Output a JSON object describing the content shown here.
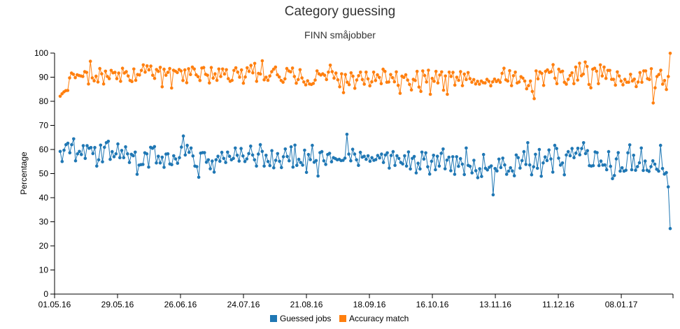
{
  "chart_data": {
    "type": "line",
    "title": "Category guessing",
    "subtitle": "FINN småjobber",
    "xlabel": "",
    "ylabel": "Percentage",
    "ylim": [
      0,
      100
    ],
    "yticks": [
      0,
      10,
      20,
      30,
      40,
      50,
      60,
      70,
      80,
      90,
      100
    ],
    "xticks": [
      "01.05.16",
      "29.05.16",
      "26.06.16",
      "24.07.16",
      "21.08.16",
      "18.09.16",
      "16.10.16",
      "13.11.16",
      "11.12.16",
      "08.01.17"
    ],
    "x_start": "01.05.16",
    "x_end": "31.01.17",
    "grid": false,
    "legend_position": "bottom",
    "series": [
      {
        "name": "Guessed jobs",
        "color": "#1f77b4",
        "values": [
          59.2,
          55.0,
          59.7,
          62.0,
          62.6,
          58.6,
          62.0,
          64.4,
          55.3,
          58.2,
          59.2,
          57.9,
          61.6,
          56.3,
          61.6,
          60.5,
          60.8,
          58.3,
          60.8,
          53.1,
          55.7,
          61.8,
          54.9,
          60.9,
          62.8,
          63.4,
          55.9,
          59.1,
          57.0,
          58.2,
          62.3,
          56.6,
          59.6,
          56.6,
          61.1,
          58.2,
          54.6,
          58.0,
          57.4,
          58.9,
          49.7,
          53.5,
          53.7,
          53.8,
          58.6,
          58.2,
          52.7,
          60.9,
          60.5,
          61.2,
          54.4,
          57.2,
          54.4,
          56.8,
          52.6,
          58.1,
          58.2,
          54.0,
          53.7,
          57.4,
          56.1,
          54.3,
          56.6,
          61.0,
          65.6,
          57.7,
          61.7,
          58.8,
          60.6,
          57.3,
          53.1,
          52.9,
          48.5,
          58.5,
          58.7,
          58.7,
          54.7,
          55.7,
          52.0,
          55.2,
          50.6,
          55.7,
          57.2,
          55.1,
          58.8,
          56.3,
          54.6,
          58.9,
          57.2,
          55.7,
          56.3,
          60.6,
          57.6,
          55.2,
          60.4,
          57.3,
          55.0,
          56.1,
          58.3,
          61.4,
          57.7,
          55.7,
          53.1,
          58.1,
          62.0,
          59.2,
          53.1,
          57.6,
          55.0,
          53.3,
          59.5,
          52.4,
          55.5,
          58.3,
          55.1,
          52.5,
          57.0,
          60.2,
          57.1,
          55.3,
          61.1,
          52.7,
          61.8,
          53.4,
          55.9,
          54.6,
          53.5,
          59.7,
          50.5,
          57.9,
          55.8,
          61.7,
          54.7,
          55.4,
          49.0,
          58.7,
          59.1,
          55.3,
          53.8,
          57.9,
          58.4,
          54.9,
          56.6,
          56.2,
          55.7,
          55.9,
          55.4,
          55.5,
          56.4,
          66.3,
          58.1,
          55.3,
          60.1,
          58.1,
          55.7,
          53.4,
          58.8,
          56.8,
          57.2,
          55.9,
          57.4,
          55.1,
          56.6,
          55.5,
          55.8,
          57.5,
          56.5,
          58.1,
          54.6,
          57.7,
          58.6,
          52.3,
          57.5,
          59.1,
          53.4,
          57.4,
          56.3,
          54.6,
          54.0,
          57.4,
          53.1,
          59.0,
          51.9,
          56.3,
          57.1,
          50.3,
          54.3,
          51.9,
          58.9,
          56.0,
          58.6,
          52.8,
          49.8,
          55.1,
          57.6,
          51.6,
          57.2,
          53.1,
          58.4,
          60.2,
          52.0,
          55.6,
          56.8,
          51.2,
          57.0,
          49.7,
          57.0,
          53.0,
          56.2,
          53.9,
          49.6,
          60.6,
          53.4,
          53.0,
          50.3,
          55.5,
          51.2,
          48.3,
          52.0,
          48.8,
          57.9,
          52.2,
          51.5,
          52.6,
          53.2,
          41.2,
          52.1,
          51.1,
          56.0,
          52.5,
          56.4,
          53.6,
          49.7,
          51.0,
          52.4,
          51.1,
          49.1,
          57.7,
          56.6,
          52.3,
          55.4,
          59.1,
          53.8,
          62.8,
          53.6,
          49.5,
          52.8,
          58.0,
          52.2,
          60.0,
          48.9,
          54.4,
          56.9,
          55.4,
          59.8,
          56.1,
          50.6,
          61.7,
          60.4,
          56.4,
          53.5,
          54.4,
          49.5,
          57.7,
          59.1,
          57.4,
          60.4,
          56.6,
          58.5,
          60.5,
          57.8,
          60.4,
          62.8,
          58.3,
          59.5,
          53.3,
          53.1,
          53.3,
          59.0,
          58.7,
          53.3,
          55.2,
          53.5,
          53.6,
          51.6,
          59.1,
          53.0,
          47.9,
          49.2,
          56.1,
          58.7,
          51.0,
          52.4,
          51.0,
          51.4,
          58.6,
          61.9,
          51.6,
          57.6,
          51.4,
          52.9,
          54.5,
          60.6,
          51.3,
          55.2,
          51.4,
          50.9,
          52.9,
          55.3,
          53.9,
          51.8,
          51.0,
          61.7,
          52.1,
          49.8,
          50.4,
          44.5,
          27.2
        ]
      },
      {
        "name": "Accuracy match",
        "color": "#ff7f0e",
        "values": [
          82.1,
          83.1,
          83.9,
          84.4,
          84.5,
          89.7,
          91.7,
          91.2,
          89.8,
          91.0,
          90.7,
          90.5,
          90.3,
          92.3,
          92.0,
          87.2,
          96.6,
          89.7,
          88.5,
          90.4,
          88.0,
          93.6,
          91.4,
          87.2,
          92.5,
          90.3,
          89.4,
          92.8,
          91.8,
          92.0,
          89.4,
          91.7,
          88.3,
          93.7,
          91.7,
          92.3,
          90.5,
          88.6,
          88.2,
          93.4,
          88.7,
          91.1,
          90.9,
          92.8,
          95.1,
          92.1,
          94.7,
          93.0,
          94.6,
          90.8,
          89.5,
          93.2,
          92.4,
          94.1,
          86.0,
          93.3,
          90.8,
          92.0,
          93.6,
          85.5,
          92.9,
          92.5,
          91.9,
          93.2,
          92.6,
          88.6,
          93.0,
          87.7,
          93.5,
          91.1,
          94.2,
          93.4,
          91.0,
          90.2,
          88.6,
          93.8,
          94.0,
          91.2,
          90.8,
          87.6,
          94.0,
          89.6,
          91.4,
          88.7,
          93.4,
          90.3,
          93.4,
          91.3,
          93.1,
          89.4,
          88.3,
          88.7,
          92.8,
          93.9,
          92.1,
          90.0,
          93.0,
          87.5,
          90.1,
          93.9,
          92.4,
          94.9,
          91.8,
          95.7,
          88.3,
          91.6,
          91.3,
          96.8,
          88.9,
          90.0,
          88.7,
          90.5,
          92.3,
          93.3,
          94.2,
          91.0,
          90.1,
          88.6,
          87.9,
          89.3,
          93.6,
          92.6,
          92.2,
          93.8,
          90.3,
          87.5,
          89.0,
          93.1,
          89.7,
          88.0,
          86.8,
          88.5,
          87.2,
          87.0,
          87.4,
          88.8,
          92.6,
          91.4,
          90.9,
          91.4,
          90.8,
          89.0,
          92.1,
          95.0,
          92.3,
          89.6,
          91.7,
          88.9,
          86.0,
          91.4,
          83.6,
          91.1,
          87.9,
          86.9,
          91.8,
          90.4,
          85.4,
          88.8,
          90.6,
          92.1,
          89.0,
          87.1,
          92.1,
          89.3,
          86.4,
          88.1,
          92.1,
          88.6,
          91.0,
          89.9,
          87.3,
          93.3,
          92.4,
          87.9,
          88.0,
          91.1,
          89.8,
          88.1,
          92.2,
          86.6,
          83.3,
          90.4,
          89.9,
          91.0,
          88.8,
          87.0,
          84.7,
          89.1,
          88.6,
          92.4,
          85.9,
          84.1,
          92.6,
          90.7,
          88.0,
          92.9,
          82.9,
          89.5,
          88.3,
          92.4,
          87.6,
          90.9,
          92.2,
          84.6,
          90.5,
          82.9,
          92.1,
          90.3,
          92.0,
          86.7,
          90.0,
          88.7,
          92.3,
          86.5,
          91.3,
          89.0,
          91.9,
          89.4,
          87.9,
          89.0,
          87.2,
          88.3,
          87.1,
          88.4,
          87.7,
          87.6,
          89.1,
          88.3,
          86.4,
          88.1,
          89.2,
          88.2,
          88.8,
          87.9,
          91.6,
          93.7,
          88.9,
          88.4,
          92.7,
          86.5,
          90.6,
          92.1,
          87.6,
          88.0,
          90.2,
          89.6,
          88.4,
          85.2,
          86.5,
          88.4,
          84.1,
          81.1,
          92.6,
          89.3,
          92.2,
          91.6,
          86.6,
          92.4,
          93.0,
          92.0,
          92.3,
          95.2,
          89.6,
          87.3,
          93.3,
          92.2,
          92.5,
          87.9,
          87.1,
          89.1,
          90.7,
          91.8,
          87.3,
          94.2,
          88.8,
          95.8,
          90.6,
          91.3,
          96.3,
          94.4,
          87.0,
          85.6,
          93.3,
          93.7,
          92.5,
          87.3,
          95.1,
          90.5,
          94.2,
          89.5,
          92.8,
          92.8,
          89.1,
          89.1,
          86.7,
          92.2,
          90.5,
          88.4,
          86.8,
          89.1,
          87.9,
          87.9,
          91.2,
          88.4,
          89.2,
          86.1,
          88.0,
          91.9,
          87.9,
          92.6,
          92.6,
          89.4,
          89.0,
          93.5,
          79.3,
          85.6,
          90.3,
          91.1,
          92.9,
          87.1,
          88.6,
          84.9,
          90.3,
          99.9
        ]
      }
    ]
  }
}
